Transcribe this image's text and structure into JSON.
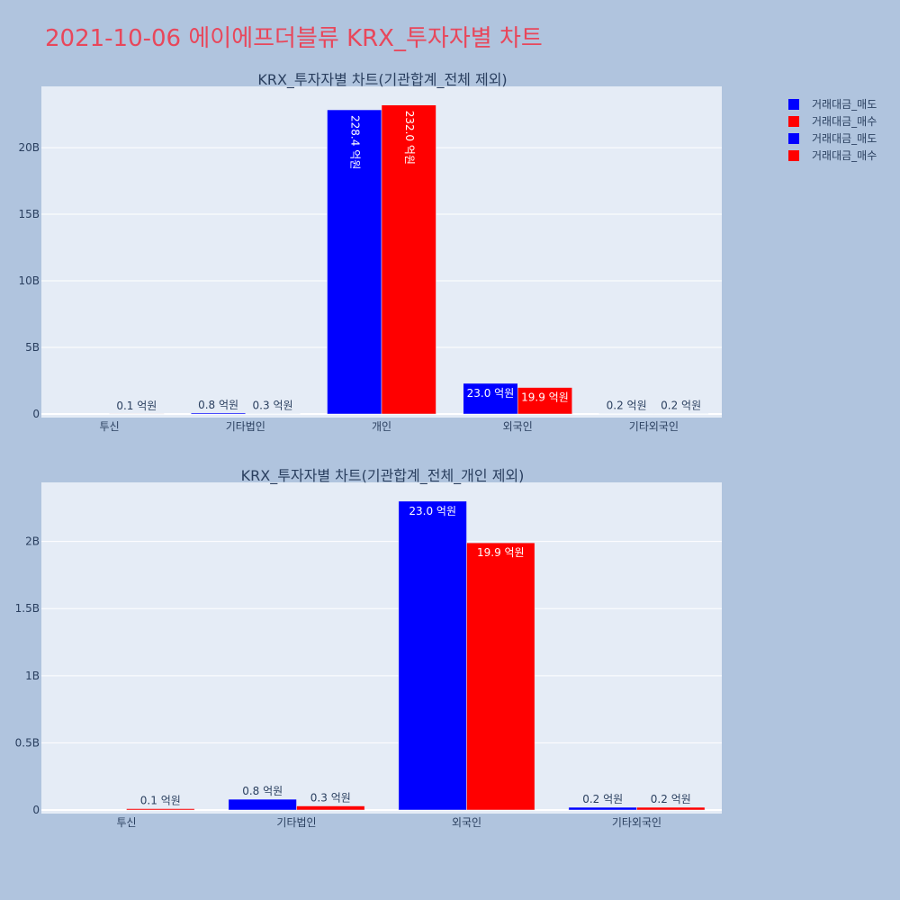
{
  "title": "2021-10-06 에이에프더블류 KRX_투자자별 차트",
  "legend": [
    {
      "label": "거래대금_매도",
      "color": "#0000ff"
    },
    {
      "label": "거래대금_매수",
      "color": "#ff0000"
    },
    {
      "label": "거래대금_매도",
      "color": "#0000ff"
    },
    {
      "label": "거래대금_매수",
      "color": "#ff0000"
    }
  ],
  "chart_data": [
    {
      "type": "bar",
      "title": "KRX_투자자별 차트(기관합계_전체 제외)",
      "categories": [
        "투신",
        "기타법인",
        "개인",
        "외국인",
        "기타외국인"
      ],
      "ylim": [
        0,
        24.6
      ],
      "yticks": [
        0,
        5,
        10,
        15,
        20
      ],
      "ytick_labels": [
        "0",
        "5B",
        "10B",
        "15B",
        "20B"
      ],
      "grid": true,
      "legend_position": "top-right",
      "series": [
        {
          "name": "거래대금_매도",
          "color": "#0000ff",
          "values": [
            0.0,
            0.08,
            22.84,
            2.3,
            0.02
          ],
          "labels": [
            "",
            "0.8 억원",
            "228.4 억원",
            "23.0 억원",
            "0.2 억원"
          ]
        },
        {
          "name": "거래대금_매수",
          "color": "#ff0000",
          "values": [
            0.01,
            0.03,
            23.2,
            1.99,
            0.02
          ],
          "labels": [
            "0.1 억원",
            "0.3 억원",
            "232.0 억원",
            "19.9 억원",
            "0.2 억원"
          ]
        }
      ]
    },
    {
      "type": "bar",
      "title": "KRX_투자자별 차트(기관합계_전체_개인 제외)",
      "categories": [
        "투신",
        "기타법인",
        "외국인",
        "기타외국인"
      ],
      "ylim": [
        0,
        2.44
      ],
      "yticks": [
        0,
        0.5,
        1,
        1.5,
        2
      ],
      "ytick_labels": [
        "0",
        "0.5B",
        "1B",
        "1.5B",
        "2B"
      ],
      "grid": true,
      "series": [
        {
          "name": "거래대금_매도",
          "color": "#0000ff",
          "values": [
            0.0,
            0.08,
            2.3,
            0.02
          ],
          "labels": [
            "",
            "0.8 억원",
            "23.0 억원",
            "0.2 억원"
          ]
        },
        {
          "name": "거래대금_매수",
          "color": "#ff0000",
          "values": [
            0.01,
            0.03,
            1.99,
            0.02
          ],
          "labels": [
            "0.1 억원",
            "0.3 억원",
            "19.9 억원",
            "0.2 억원"
          ]
        }
      ]
    }
  ]
}
